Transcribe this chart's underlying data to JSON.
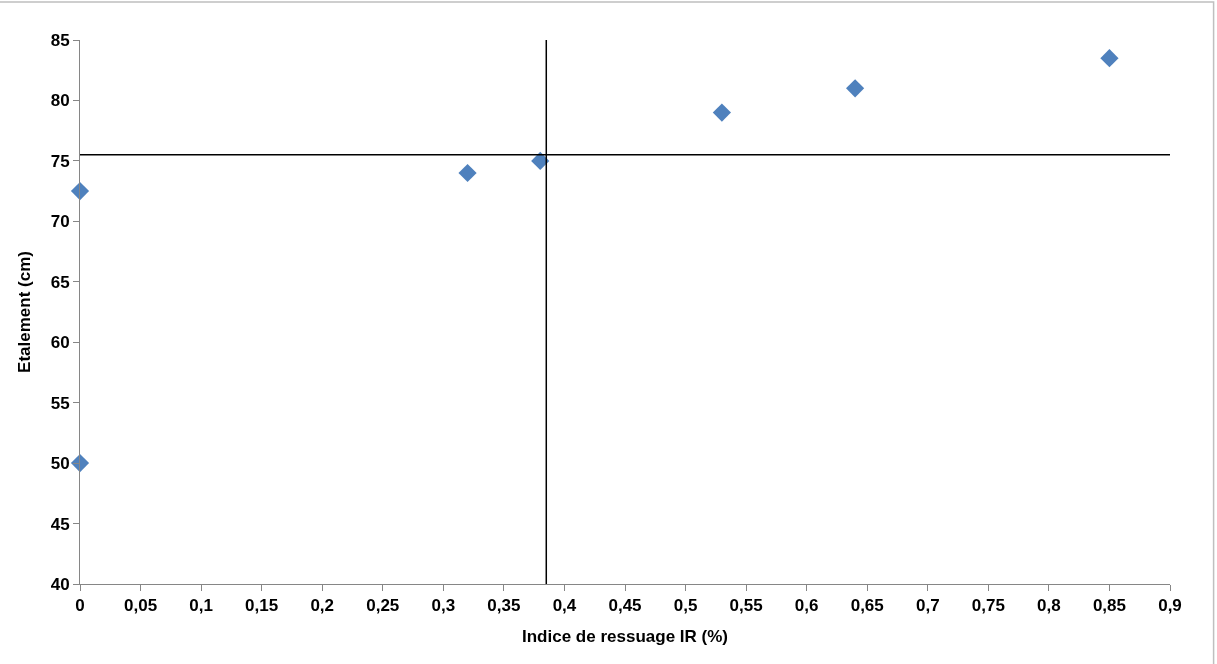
{
  "chart_data": {
    "type": "scatter",
    "xlabel": "Indice de ressuage IR (%)",
    "ylabel": "Etalement (cm)",
    "x": [
      0,
      0,
      0.32,
      0.38,
      0.53,
      0.64,
      0.85
    ],
    "series": [
      {
        "color": "#4f81bd",
        "values": [
          72.5,
          50,
          74,
          75,
          79,
          81,
          83.5
        ]
      }
    ],
    "marker": "diamond",
    "xlim": [
      0,
      0.9
    ],
    "ylim": [
      40,
      85
    ],
    "xticks": [
      0,
      {
        "value": 0.05,
        "label": "0,05"
      },
      {
        "value": 0.1,
        "label": "0,1"
      },
      {
        "value": 0.15,
        "label": "0,15"
      },
      {
        "value": 0.2,
        "label": "0,2"
      },
      {
        "value": 0.25,
        "label": "0,25"
      },
      {
        "value": 0.3,
        "label": "0,3"
      },
      {
        "value": 0.35,
        "label": "0,35"
      },
      {
        "value": 0.4,
        "label": "0,4"
      },
      {
        "value": 0.45,
        "label": "0,45"
      },
      {
        "value": 0.5,
        "label": "0,5"
      },
      {
        "value": 0.55,
        "label": "0,55"
      },
      {
        "value": 0.6,
        "label": "0,6"
      },
      {
        "value": 0.65,
        "label": "0,65"
      },
      {
        "value": 0.7,
        "label": "0,7"
      },
      {
        "value": 0.75,
        "label": "0,75"
      },
      {
        "value": 0.8,
        "label": "0,8"
      },
      {
        "value": 0.85,
        "label": "0,85"
      },
      {
        "value": 0.9,
        "label": "0,9"
      }
    ],
    "yticks": [
      40,
      45,
      50,
      55,
      60,
      65,
      70,
      75,
      80,
      85
    ],
    "ref_lines": [
      {
        "axis": "y",
        "value": 75.5,
        "color": "#000000"
      },
      {
        "axis": "x",
        "value": 0.385,
        "color": "#000000"
      }
    ]
  }
}
